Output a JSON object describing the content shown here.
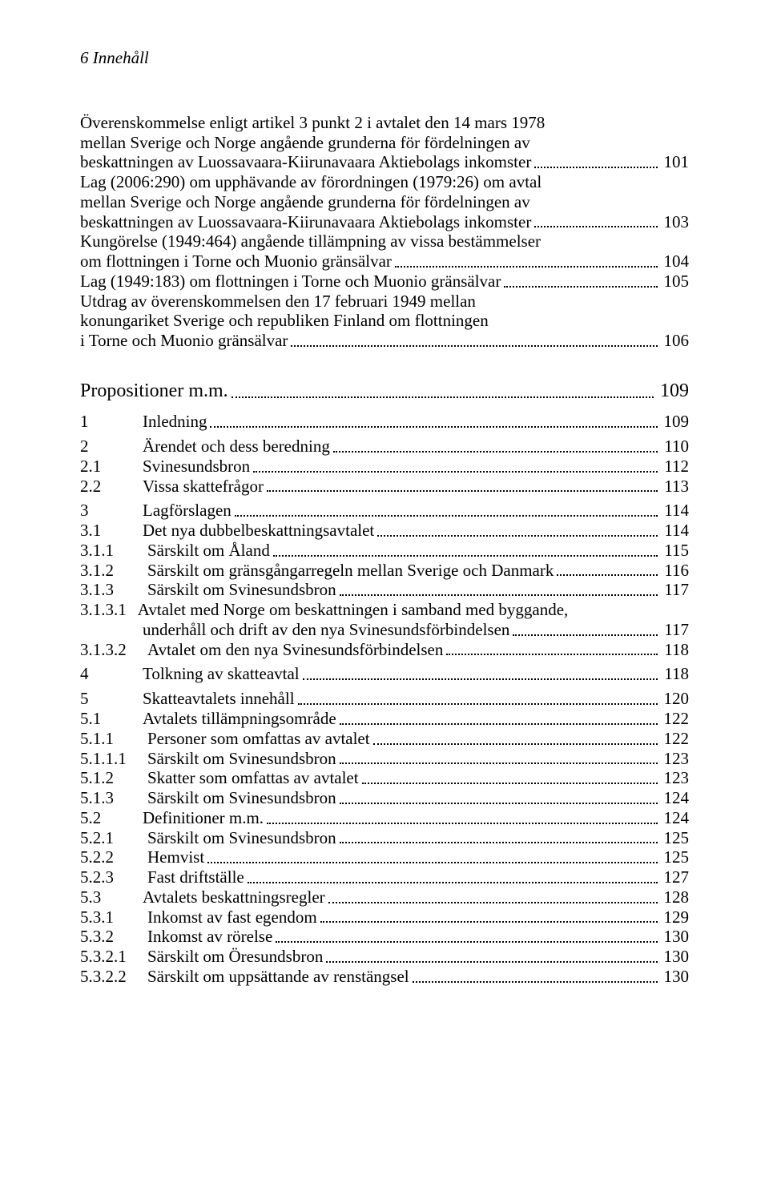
{
  "header": "6  Innehåll",
  "top_entries": [
    {
      "lines": [
        "Överenskommelse enligt artikel 3 punkt 2 i avtalet den 14 mars 1978",
        "mellan Sverige och Norge angående grunderna för fördelningen av",
        "beskattningen av Luossavaara-Kiirunavaara Aktiebolags inkomster"
      ],
      "page": "101"
    },
    {
      "lines": [
        "Lag (2006:290) om upphävande av förordningen (1979:26) om avtal",
        "mellan Sverige och Norge angående grunderna för fördelningen av",
        "beskattningen av Luossavaara-Kiirunavaara Aktiebolags inkomster"
      ],
      "page": "103"
    },
    {
      "lines": [
        "Kungörelse (1949:464) angående tillämpning av vissa bestämmelser",
        "om flottningen i Torne och Muonio gränsälvar"
      ],
      "page": "104"
    },
    {
      "lines": [
        "Lag (1949:183) om flottningen i Torne och Muonio gränsälvar"
      ],
      "page": "105"
    },
    {
      "lines": [
        "Utdrag av överenskommelsen den 17 februari 1949 mellan",
        "konungariket Sverige och republiken Finland om flottningen",
        "i Torne och Muonio gränsälvar"
      ],
      "page": "106"
    }
  ],
  "section_title": {
    "label": "Propositioner m.m.",
    "page": "109"
  },
  "toc": [
    {
      "num": "1",
      "label": "Inledning",
      "page": "109",
      "group_start": true
    },
    {
      "num": "2",
      "label": "Ärendet och dess beredning",
      "page": "110",
      "group_start": true
    },
    {
      "num": "2.1",
      "label": "Svinesundsbron",
      "page": "112"
    },
    {
      "num": "2.2",
      "label": "Vissa skattefrågor",
      "page": "113"
    },
    {
      "num": "3",
      "label": "Lagförslagen",
      "page": "114",
      "group_start": true
    },
    {
      "num": "3.1",
      "label": "Det nya dubbelbeskattningsavtalet",
      "page": "114"
    },
    {
      "num": "3.1.1",
      "label": "Särskilt om Åland",
      "page": "115"
    },
    {
      "num": "3.1.2",
      "label": "Särskilt om gränsgångarregeln mellan Sverige och Danmark",
      "page": "116"
    },
    {
      "num": "3.1.3",
      "label": "Särskilt om Svinesundsbron",
      "page": "117"
    },
    {
      "num": "3.1.3.1",
      "label_lines": [
        "Avtalet med Norge om beskattningen i samband med byggande,",
        "underhåll och drift av den nya Svinesundsförbindelsen"
      ],
      "page": "117"
    },
    {
      "num": "3.1.3.2",
      "label": "Avtalet om den nya Svinesundsförbindelsen",
      "page": "118"
    },
    {
      "num": "4",
      "label": "Tolkning av skatteavtal",
      "page": "118",
      "group_start": true
    },
    {
      "num": "5",
      "label": "Skatteavtalets innehåll",
      "page": "120",
      "group_start": true
    },
    {
      "num": "5.1",
      "label": "Avtalets tillämpningsområde",
      "page": "122"
    },
    {
      "num": "5.1.1",
      "label": "Personer som omfattas av avtalet",
      "page": "122"
    },
    {
      "num": "5.1.1.1",
      "label": "Särskilt om Svinesundsbron",
      "page": "123"
    },
    {
      "num": "5.1.2",
      "label": "Skatter som omfattas av avtalet",
      "page": "123"
    },
    {
      "num": "5.1.3",
      "label": "Särskilt om Svinesundsbron",
      "page": "124"
    },
    {
      "num": "5.2",
      "label": "Definitioner m.m.",
      "page": "124"
    },
    {
      "num": "5.2.1",
      "label": "Särskilt om Svinesundsbron",
      "page": "125"
    },
    {
      "num": "5.2.2",
      "label": "Hemvist",
      "page": "125"
    },
    {
      "num": "5.2.3",
      "label": "Fast driftställe",
      "page": "127"
    },
    {
      "num": "5.3",
      "label": "Avtalets beskattningsregler",
      "page": "128"
    },
    {
      "num": "5.3.1",
      "label": "Inkomst av fast egendom",
      "page": "129"
    },
    {
      "num": "5.3.2",
      "label": "Inkomst av rörelse",
      "page": "130"
    },
    {
      "num": "5.3.2.1",
      "label": "Särskilt om Öresundsbron",
      "page": "130"
    },
    {
      "num": "5.3.2.2",
      "label": "Särskilt om uppsättande av renstängsel",
      "page": "130"
    }
  ]
}
